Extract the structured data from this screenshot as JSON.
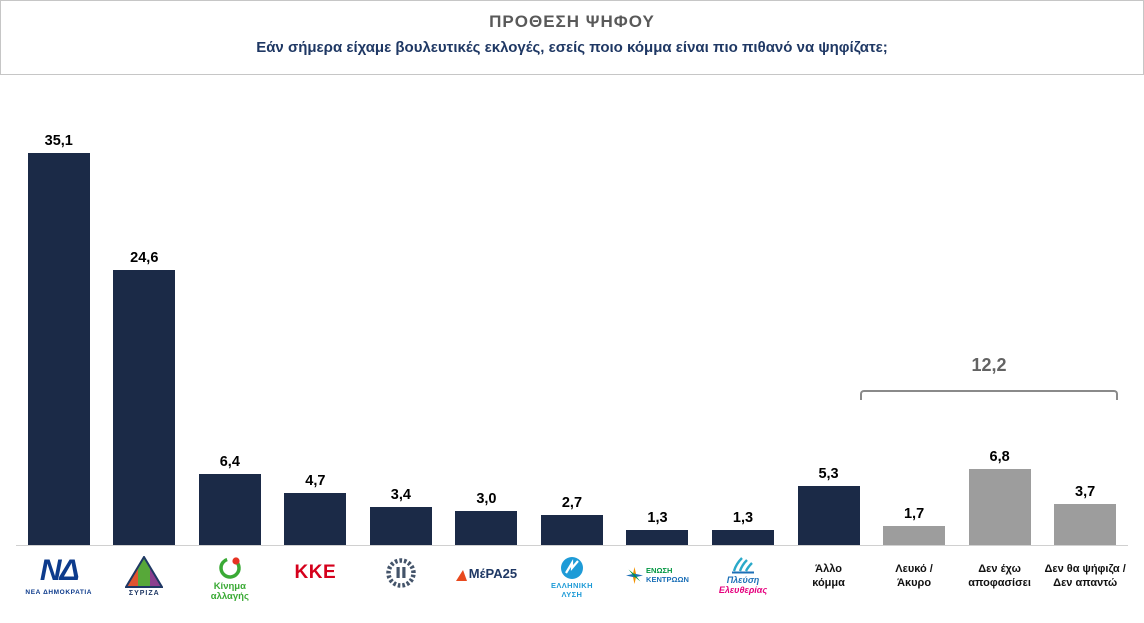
{
  "chart_data": {
    "type": "bar",
    "title": "ΠΡΟΘΕΣΗ ΨΗΦΟΥ",
    "subtitle": "Εάν σήμερα είχαμε βουλευτικές εκλογές, εσείς ποιο κόμμα είναι πιο πιθανό να ψηφίζατε;",
    "categories": [
      "ΝΕΑ ΔΗΜΟΚΡΑΤΙΑ",
      "ΣΥΡΙΖΑ",
      "Κίνημα αλλαγής",
      "ΚΚΕ",
      "[laurel wreath logo]",
      "ΜέΡΑ25",
      "ΕΛΛΗΝΙΚΗ ΛΥΣΗ",
      "ΕΝΩΣΗ ΚΕΝΤΡΩΩΝ",
      "Πλεύση Ελευθερίας",
      "Άλλο κόμμα",
      "Λευκό / Άκυρο",
      "Δεν έχω αποφασίσει",
      "Δεν θα ψήφιζα / Δεν απαντώ"
    ],
    "values": [
      35.1,
      24.6,
      6.4,
      4.7,
      3.4,
      3.0,
      2.7,
      1.3,
      1.3,
      5.3,
      1.7,
      6.8,
      3.7
    ],
    "value_labels": [
      "35,1",
      "24,6",
      "6,4",
      "4,7",
      "3,4",
      "3,0",
      "2,7",
      "1,3",
      "1,3",
      "5,3",
      "1,7",
      "6,8",
      "3,7"
    ],
    "bar_colors": [
      "#1b2a47",
      "#1b2a47",
      "#1b2a47",
      "#1b2a47",
      "#1b2a47",
      "#1b2a47",
      "#1b2a47",
      "#1b2a47",
      "#1b2a47",
      "#1b2a47",
      "#9d9d9d",
      "#9d9d9d",
      "#9d9d9d"
    ],
    "ylim": [
      0,
      40
    ],
    "grid": false,
    "legend": "none",
    "annotation": {
      "text": "12,2",
      "spans": [
        "Λευκό / Άκυρο",
        "Δεν έχω αποφασίσει",
        "Δεν θα ψήφιζα / Δεν απαντώ"
      ]
    }
  },
  "labels": {
    "nd_glyph": "ΝΔ",
    "nd_sub": "ΝΕΑ ΔΗΜΟΚΡΑΤΙΑ",
    "syriza": "ΣΥΡΙΖΑ",
    "kinal_line1": "Κίνημα",
    "kinal_line2": "αλλαγής",
    "kke": "ΚΚΕ",
    "mera25": "ΜέΡΑ25",
    "lysi_line1": "ΕΛΛΗΝΙΚΗ",
    "lysi_line2": "ΛΥΣΗ",
    "ek_line1": "ΕΝΩΣΗ",
    "ek_line2": "ΚΕΝΤΡΩΩΝ",
    "plefsi_line1": "Πλεύση",
    "plefsi_line2": "Ελευθερίας",
    "other_party": "Άλλο κόμμα",
    "blank_invalid": "Λευκό / Άκυρο",
    "undecided": "Δεν έχω αποφασίσει",
    "no_vote": "Δεν θα ψήφιζα / Δεν απαντώ"
  },
  "colors": {
    "title-gray": "#595959",
    "subtitle-navy": "#1f3864",
    "baseline-gray": "#d0d0d0",
    "annotation-gray": "#636363",
    "bracket-gray": "#8a8a8a",
    "nd-blue": "#0d3b8c",
    "syriza-navy": "#1f3864",
    "syriza-orange": "#e0552f",
    "syriza-green": "#57a839",
    "syriza-purple": "#8b3f8f",
    "kinal-green": "#3aaa35",
    "kinal-red": "#e63323",
    "kke-red": "#d5001c",
    "wreath-gray": "#44546a",
    "mera-navy": "#1f3864",
    "mera-orange": "#e8491e",
    "lysi-blue": "#1e9bd7",
    "ek-green": "#009640",
    "ek-blue": "#1d70b7",
    "ek-orange": "#f39200",
    "plefsi-blue": "#1d70b7",
    "plefsi-magenta": "#e6007e",
    "plefsi-teal": "#2aa9c9"
  }
}
